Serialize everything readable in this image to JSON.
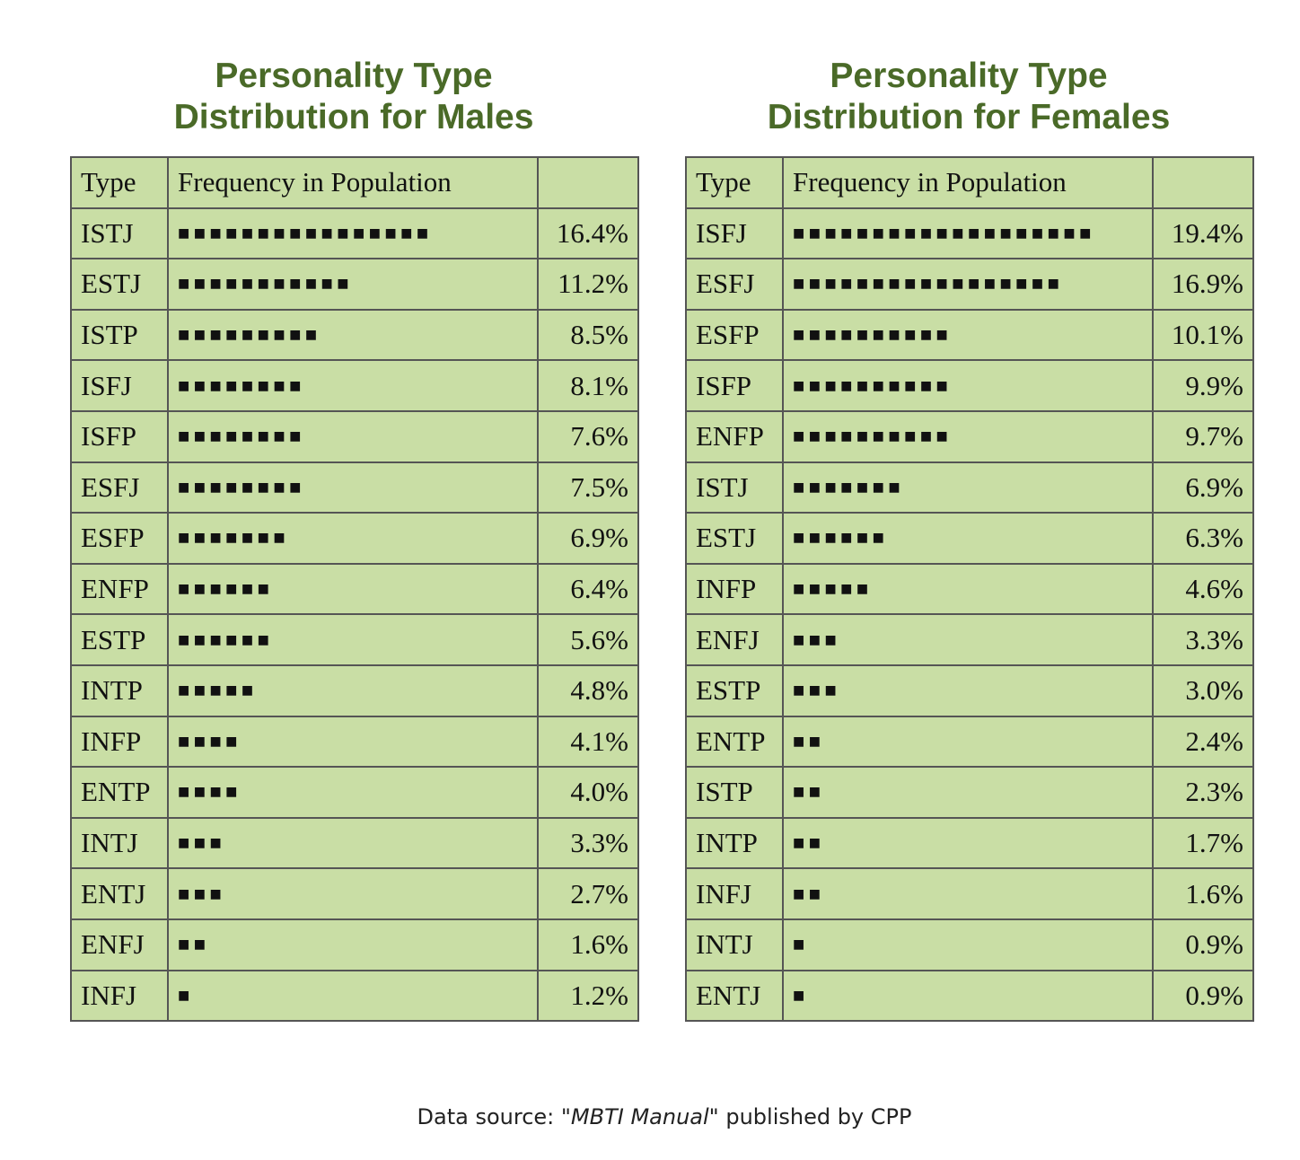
{
  "footer": {
    "prefix": "Data source: \"",
    "italic": "MBTI Manual",
    "suffix": "\" published by CPP"
  },
  "tables": [
    {
      "title_line1": "Personality Type",
      "title_line2": "Distribution for Males",
      "header": [
        "Type",
        "Frequency in Population"
      ],
      "rows": [
        [
          "ISTJ",
          "■■■■■■■■■■■■■■■■",
          "16.4%"
        ],
        [
          "ESTJ",
          "■■■■■■■■■■■",
          "11.2%"
        ],
        [
          "ISTP",
          "■■■■■■■■■",
          "8.5%"
        ],
        [
          "ISFJ",
          "■■■■■■■■",
          "8.1%"
        ],
        [
          "ISFP",
          "■■■■■■■■",
          "7.6%"
        ],
        [
          "ESFJ",
          "■■■■■■■■",
          "7.5%"
        ],
        [
          "ESFP",
          "■■■■■■■",
          "6.9%"
        ],
        [
          "ENFP",
          "■■■■■■",
          "6.4%"
        ],
        [
          "ESTP",
          "■■■■■■",
          "5.6%"
        ],
        [
          "INTP",
          "■■■■■",
          "4.8%"
        ],
        [
          "INFP",
          "■■■■",
          "4.1%"
        ],
        [
          "ENTP",
          "■■■■",
          "4.0%"
        ],
        [
          "INTJ",
          "■■■",
          "3.3%"
        ],
        [
          "ENTJ",
          "■■■",
          "2.7%"
        ],
        [
          "ENFJ",
          "■■",
          "1.6%"
        ],
        [
          "INFJ",
          "■",
          "1.2%"
        ]
      ]
    },
    {
      "title_line1": "Personality Type",
      "title_line2": "Distribution for Females",
      "header": [
        "Type",
        "Frequency in Population"
      ],
      "rows": [
        [
          "ISFJ",
          "■■■■■■■■■■■■■■■■■■■",
          "19.4%"
        ],
        [
          "ESFJ",
          "■■■■■■■■■■■■■■■■■",
          "16.9%"
        ],
        [
          "ESFP",
          "■■■■■■■■■■",
          "10.1%"
        ],
        [
          "ISFP",
          "■■■■■■■■■■",
          "9.9%"
        ],
        [
          "ENFP",
          "■■■■■■■■■■",
          "9.7%"
        ],
        [
          "ISTJ",
          "■■■■■■■",
          "6.9%"
        ],
        [
          "ESTJ",
          "■■■■■■",
          "6.3%"
        ],
        [
          "INFP",
          "■■■■■",
          "4.6%"
        ],
        [
          "ENFJ",
          "■■■",
          "3.3%"
        ],
        [
          "ESTP",
          "■■■",
          "3.0%"
        ],
        [
          "ENTP",
          "■■",
          "2.4%"
        ],
        [
          "ISTP",
          "■■",
          "2.3%"
        ],
        [
          "INTP",
          "■■",
          "1.7%"
        ],
        [
          "INFJ",
          "■■",
          "1.6%"
        ],
        [
          "INTJ",
          "■",
          "0.9%"
        ],
        [
          "ENTJ",
          "■",
          "0.9%"
        ]
      ]
    }
  ]
}
